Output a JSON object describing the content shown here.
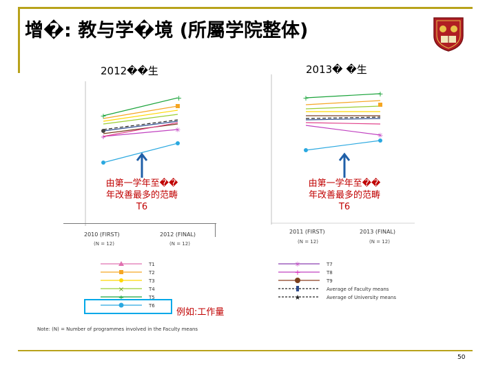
{
  "title": "增�: 教与学�境  (所屬学院整体)",
  "panels": [
    {
      "title": "2012��生",
      "note_line1": "由第一学年至��",
      "note_line2": "年改善最多的范畴",
      "note_line3": "T6",
      "x_start": "2010 (FIRST)",
      "x_end": "2012 (FINAL)",
      "n_start": "(N = 12)",
      "n_end": "(N = 12)"
    },
    {
      "title": "2013� �生",
      "note_line1": "由第一学年至��",
      "note_line2": "年改善最多的范畴",
      "note_line3": "T6",
      "x_start": "2011 (FIRST)",
      "x_end": "2013 (FINAL)",
      "n_start": "(N = 12)",
      "n_end": "(N = 12)"
    }
  ],
  "legend_left": [
    "T1",
    "T2",
    "T3",
    "T4",
    "T5",
    "T6"
  ],
  "legend_right": [
    "T7",
    "T8",
    "T9",
    "Average of Faculty means",
    "Average of University means"
  ],
  "example_label": "例如:工作量",
  "footnote": "Note: (N) = Number of programmes involved in the Faculty means",
  "page_number": "50",
  "colors": {
    "frame": "#b8a21a",
    "accent_red": "#c00000",
    "highlight": "#00a8e8",
    "arrow_blue": "#1f5fa8"
  }
}
